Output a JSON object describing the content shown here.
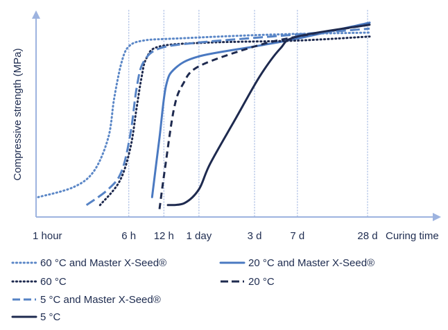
{
  "chart_data": {
    "type": "line",
    "title": "",
    "xlabel": "Curing time",
    "ylabel": "Compressive strength (MPa)",
    "x_scale": "log",
    "grid": "vertical dotted lines at labeled ticks",
    "legend_position": "bottom",
    "x_ticks": [
      {
        "label": "1 hour",
        "hours": 1
      },
      {
        "label": "6 h",
        "hours": 6
      },
      {
        "label": "12 h",
        "hours": 12
      },
      {
        "label": "1 day",
        "hours": 24
      },
      {
        "label": "3 d",
        "hours": 72
      },
      {
        "label": "7 d",
        "hours": 168
      },
      {
        "label": "28 d",
        "hours": 672
      }
    ],
    "grid_at_hours": [
      6,
      12,
      24,
      72,
      168,
      672
    ],
    "x_unit": "hours",
    "y_unit": "relative strength (0-100)",
    "series": [
      {
        "name": "60 °C and Master X-Seed®",
        "color": "#5b87c7",
        "dash": "dotted",
        "points": [
          [
            1,
            10
          ],
          [
            2,
            15
          ],
          [
            3,
            23
          ],
          [
            4,
            40
          ],
          [
            4.5,
            60
          ],
          [
            5.2,
            78
          ],
          [
            6,
            86
          ],
          [
            8,
            89
          ],
          [
            15,
            90
          ],
          [
            100,
            92
          ],
          [
            700,
            93
          ]
        ]
      },
      {
        "name": "20 °C and Master X-Seed®",
        "color": "#4a79c1",
        "dash": "solid",
        "points": [
          [
            9.5,
            10
          ],
          [
            11,
            40
          ],
          [
            12.5,
            66
          ],
          [
            15,
            75
          ],
          [
            24,
            81
          ],
          [
            72,
            86
          ],
          [
            168,
            90
          ],
          [
            700,
            98
          ]
        ]
      },
      {
        "name": "60 °C",
        "color": "#1e2a4f",
        "dash": "dotted",
        "points": [
          [
            3.4,
            6
          ],
          [
            5,
            18
          ],
          [
            6.2,
            35
          ],
          [
            7,
            55
          ],
          [
            7.7,
            70
          ],
          [
            8.5,
            80
          ],
          [
            11,
            86
          ],
          [
            30,
            88
          ],
          [
            168,
            89
          ],
          [
            700,
            91
          ]
        ]
      },
      {
        "name": "20 °C",
        "color": "#1e2a4f",
        "dash": "dashed",
        "points": [
          [
            11,
            4
          ],
          [
            12.3,
            25
          ],
          [
            14.7,
            55
          ],
          [
            17.5,
            67
          ],
          [
            24,
            76
          ],
          [
            72,
            86
          ],
          [
            168,
            91
          ],
          [
            700,
            97
          ]
        ]
      },
      {
        "name": "5 °C and Master X-Seed®",
        "color": "#5683c5",
        "dash": "long-dashed",
        "points": [
          [
            2.6,
            6
          ],
          [
            4,
            14
          ],
          [
            5.2,
            23
          ],
          [
            6.2,
            42
          ],
          [
            7,
            65
          ],
          [
            8,
            78
          ],
          [
            11,
            85
          ],
          [
            24,
            88
          ],
          [
            100,
            91
          ],
          [
            700,
            95
          ]
        ]
      },
      {
        "name": "5 °C",
        "color": "#1e2a4f",
        "dash": "solid",
        "points": [
          [
            13,
            6
          ],
          [
            18,
            7
          ],
          [
            24,
            14
          ],
          [
            30,
            27
          ],
          [
            50,
            50
          ],
          [
            80,
            71
          ],
          [
            120,
            85
          ],
          [
            168,
            91
          ],
          [
            700,
            97
          ]
        ]
      }
    ],
    "legend": [
      {
        "label": "60 °C and Master X-Seed®",
        "series": 0
      },
      {
        "label": "20 °C and Master X-Seed®",
        "series": 1
      },
      {
        "label": "60 °C",
        "series": 2
      },
      {
        "label": "20 °C",
        "series": 3
      },
      {
        "label": "5 °C and Master X-Seed®",
        "series": 4
      },
      {
        "label": "5 °C",
        "series": 5
      }
    ]
  }
}
